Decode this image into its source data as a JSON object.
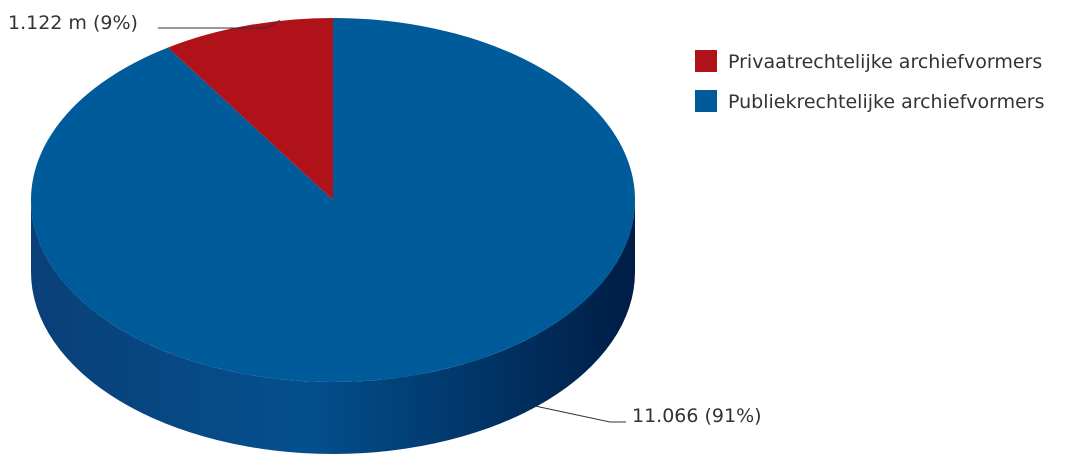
{
  "chart_data": {
    "type": "pie",
    "style": "3d",
    "slices": [
      {
        "name": "Privaatrechtelijke archiefvormers",
        "value": 1122,
        "percent": 9,
        "label": "1.122 m (9%)",
        "color": "#b0121a",
        "side_color": "#7a0c12"
      },
      {
        "name": "Publiekrechtelijke archiefvormers",
        "value": 11066,
        "percent": 91,
        "label": "11.066 (91%)",
        "color": "#005b9a",
        "side_color": "#00234a"
      }
    ],
    "legend_position": "top-right"
  }
}
